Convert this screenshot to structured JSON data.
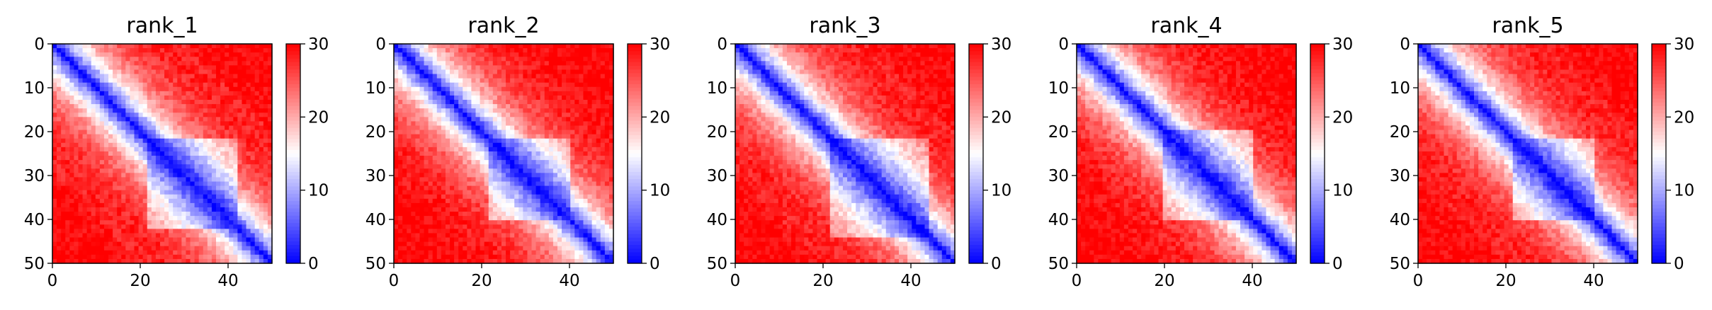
{
  "chart_data": [
    {
      "type": "heatmap",
      "title": "rank_1",
      "matrix_size": 51,
      "xlim": [
        0,
        50
      ],
      "ylim": [
        50,
        0
      ],
      "xticks": [
        0,
        20,
        40
      ],
      "yticks": [
        0,
        10,
        20,
        30,
        40,
        50
      ],
      "colorbar": {
        "min": 0,
        "max": 30,
        "ticks": [
          0,
          10,
          20,
          30
        ],
        "colormap": "bwr",
        "low_color": "#0000ff",
        "mid_color": "#ffffff",
        "high_color": "#ff0000"
      },
      "pattern": {
        "diagonal_value": 0,
        "off_diagonal_max": 30,
        "far_corner_value": 28,
        "central_domain": [
          22,
          42
        ]
      }
    },
    {
      "type": "heatmap",
      "title": "rank_2",
      "matrix_size": 51,
      "xlim": [
        0,
        50
      ],
      "ylim": [
        50,
        0
      ],
      "xticks": [
        0,
        20,
        40
      ],
      "yticks": [
        0,
        10,
        20,
        30,
        40,
        50
      ],
      "colorbar": {
        "min": 0,
        "max": 30,
        "ticks": [
          0,
          10,
          20,
          30
        ],
        "colormap": "bwr",
        "low_color": "#0000ff",
        "mid_color": "#ffffff",
        "high_color": "#ff0000"
      },
      "pattern": {
        "diagonal_value": 0,
        "off_diagonal_max": 30,
        "far_corner_value": 29,
        "central_domain": [
          22,
          40
        ]
      }
    },
    {
      "type": "heatmap",
      "title": "rank_3",
      "matrix_size": 51,
      "xlim": [
        0,
        50
      ],
      "ylim": [
        50,
        0
      ],
      "xticks": [
        0,
        20,
        40
      ],
      "yticks": [
        0,
        10,
        20,
        30,
        40,
        50
      ],
      "colorbar": {
        "min": 0,
        "max": 30,
        "ticks": [
          0,
          10,
          20,
          30
        ],
        "colormap": "bwr",
        "low_color": "#0000ff",
        "mid_color": "#ffffff",
        "high_color": "#ff0000"
      },
      "pattern": {
        "diagonal_value": 0,
        "off_diagonal_max": 30,
        "far_corner_value": 28,
        "central_domain": [
          22,
          44
        ]
      }
    },
    {
      "type": "heatmap",
      "title": "rank_4",
      "matrix_size": 51,
      "xlim": [
        0,
        50
      ],
      "ylim": [
        50,
        0
      ],
      "xticks": [
        0,
        20,
        40
      ],
      "yticks": [
        0,
        10,
        20,
        30,
        40,
        50
      ],
      "colorbar": {
        "min": 0,
        "max": 30,
        "ticks": [
          0,
          10,
          20,
          30
        ],
        "colormap": "bwr",
        "low_color": "#0000ff",
        "mid_color": "#ffffff",
        "high_color": "#ff0000"
      },
      "pattern": {
        "diagonal_value": 0,
        "off_diagonal_max": 30,
        "far_corner_value": 29,
        "central_domain": [
          20,
          40
        ]
      }
    },
    {
      "type": "heatmap",
      "title": "rank_5",
      "matrix_size": 51,
      "xlim": [
        0,
        50
      ],
      "ylim": [
        50,
        0
      ],
      "xticks": [
        0,
        20,
        40
      ],
      "yticks": [
        0,
        10,
        20,
        30,
        40,
        50
      ],
      "colorbar": {
        "min": 0,
        "max": 30,
        "ticks": [
          0,
          10,
          20,
          30
        ],
        "colormap": "bwr",
        "low_color": "#0000ff",
        "mid_color": "#ffffff",
        "high_color": "#ff0000"
      },
      "pattern": {
        "diagonal_value": 0,
        "off_diagonal_max": 30,
        "far_corner_value": 28,
        "central_domain": [
          22,
          40
        ]
      }
    }
  ]
}
